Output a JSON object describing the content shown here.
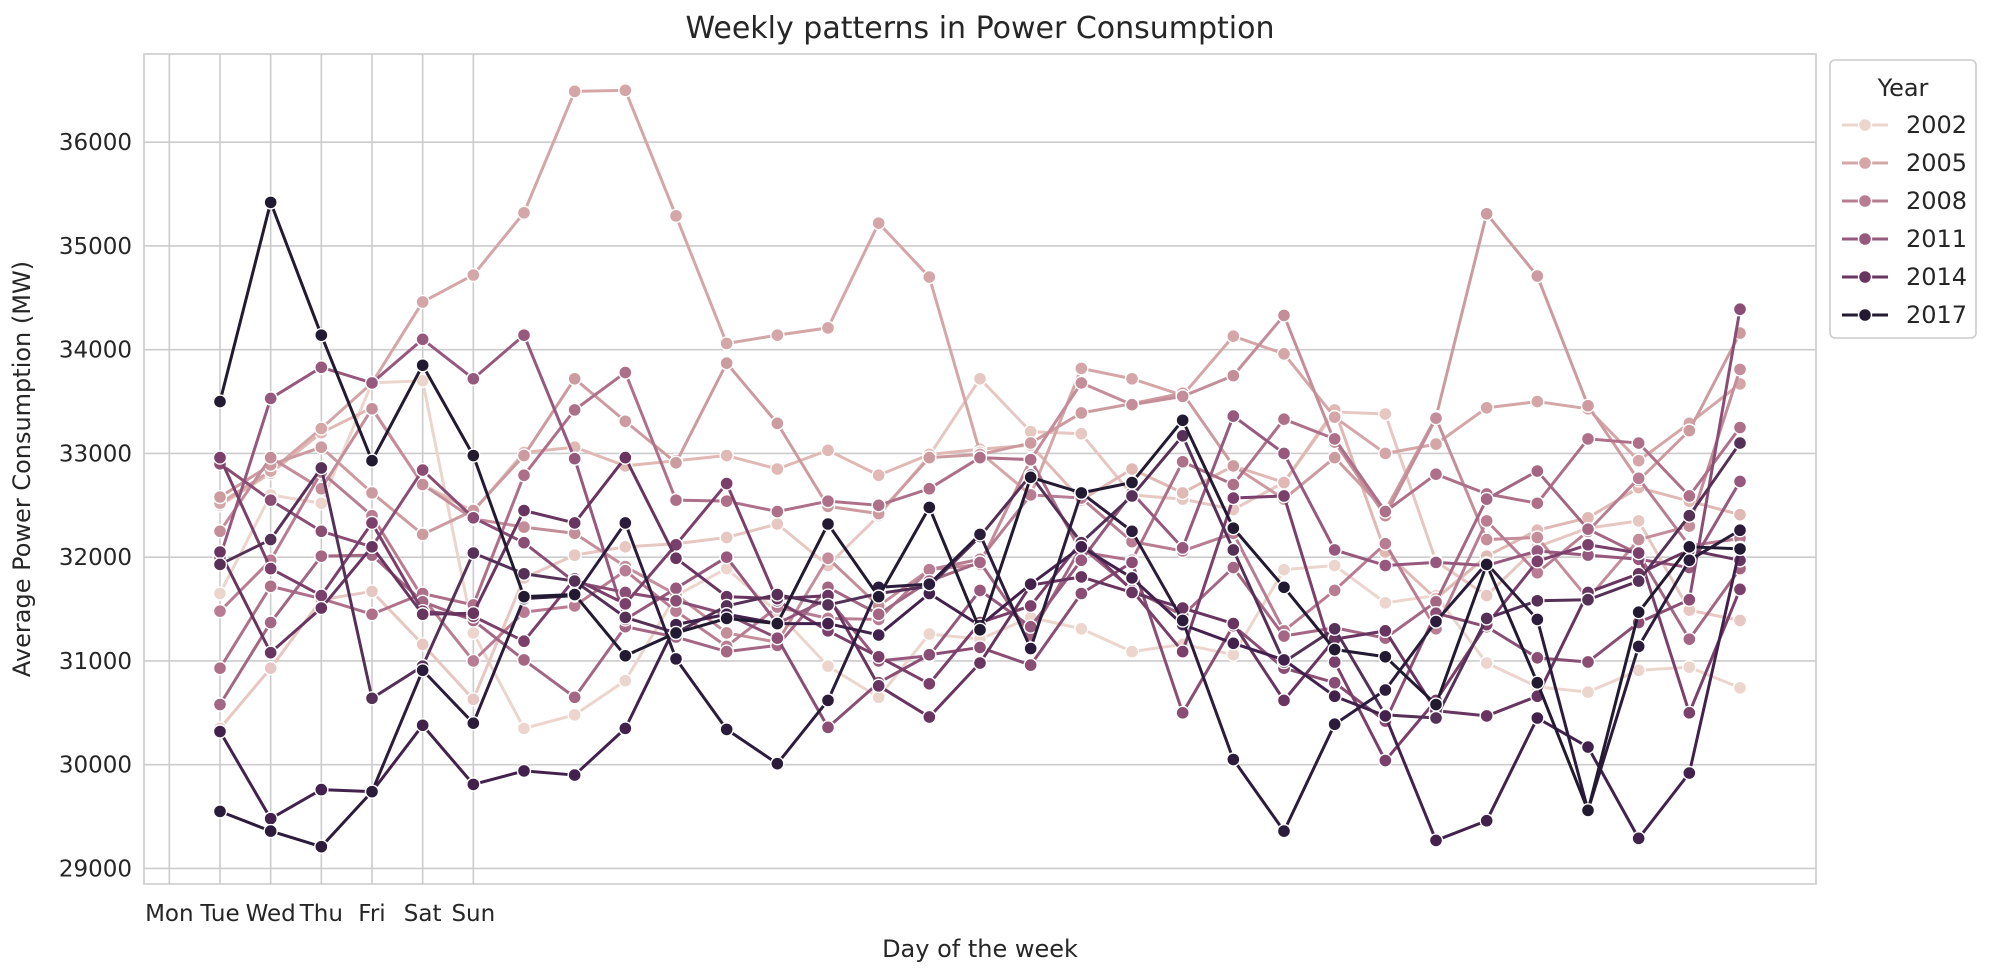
{
  "chart_data": {
    "type": "line",
    "title": "Weekly patterns in Power Consumption",
    "xlabel": "Day of the week",
    "ylabel": "Average Power Consumption (MW)",
    "xlim": [
      -1.5,
      31.5
    ],
    "ylim": [
      28850,
      36850
    ],
    "x_tick_positions": [
      -1,
      0,
      1,
      2,
      3,
      4,
      5
    ],
    "x_tick_labels": [
      "Mon",
      "Tue",
      "Wed",
      "Thu",
      "Fri",
      "Sat",
      "Sun"
    ],
    "y_ticks": [
      29000,
      30000,
      31000,
      32000,
      33000,
      34000,
      35000,
      36000
    ],
    "grid": true,
    "legend": {
      "title": "Year",
      "placement": "upper-right-outside",
      "entries": [
        "2002",
        "2005",
        "2008",
        "2011",
        "2014",
        "2017"
      ]
    },
    "x": [
      0,
      1,
      2,
      3,
      4,
      5,
      6,
      7,
      8,
      9,
      10,
      11,
      12,
      13,
      14,
      15,
      16,
      17,
      18,
      19,
      20,
      21,
      22,
      23,
      24,
      25,
      26,
      27,
      28,
      29,
      30
    ],
    "series": [
      {
        "color": "#ecd5cd",
        "values": [
          31650,
          32600,
          32520,
          33680,
          33700,
          31270,
          30350,
          30480,
          30810,
          31630,
          31890,
          31470,
          30950,
          30650,
          31260,
          31210,
          31420,
          31310,
          31090,
          31160,
          31060,
          31880,
          31920,
          31560,
          31630,
          30980,
          30750,
          30700,
          30910,
          30940,
          30740
        ]
      },
      {
        "color": "#e7c7c1",
        "values": [
          30350,
          30930,
          31590,
          31670,
          31160,
          30630,
          31800,
          32020,
          32100,
          32130,
          32190,
          32320,
          31920,
          32400,
          32980,
          33720,
          33210,
          33190,
          32600,
          32560,
          32460,
          32720,
          33400,
          33380,
          31960,
          31630,
          32100,
          32280,
          32350,
          31490,
          31390
        ]
      },
      {
        "color": "#e0b9b5",
        "values": [
          32500,
          32810,
          33200,
          33440,
          32700,
          32440,
          33010,
          33060,
          32880,
          32930,
          32980,
          32850,
          33030,
          32790,
          32990,
          33040,
          33080,
          32550,
          32850,
          32620,
          32880,
          32720,
          33420,
          32050,
          31600,
          32010,
          32260,
          32380,
          32670,
          32540,
          32410
        ]
      },
      {
        "color": "#d4a6a7",
        "values": [
          32520,
          32830,
          33240,
          33680,
          34460,
          34720,
          35320,
          36490,
          36500,
          35290,
          34060,
          34140,
          34210,
          35220,
          34700,
          33010,
          32600,
          33820,
          33720,
          33560,
          34130,
          33960,
          33350,
          33000,
          33090,
          33440,
          33500,
          33430,
          32930,
          33290,
          33670
        ]
      },
      {
        "color": "#cc9ba0",
        "values": [
          32580,
          32890,
          33060,
          32620,
          32220,
          32450,
          32980,
          33720,
          33310,
          32910,
          33870,
          33290,
          32490,
          32420,
          32960,
          32990,
          33100,
          33390,
          33480,
          33580,
          32880,
          32560,
          32960,
          32450,
          33350,
          35310,
          34710,
          33460,
          32740,
          33220,
          34160
        ]
      },
      {
        "color": "#c38d9a",
        "values": [
          32250,
          32960,
          32660,
          33430,
          32700,
          32370,
          32290,
          32230,
          31910,
          31640,
          31270,
          31180,
          31990,
          31530,
          31880,
          31930,
          32940,
          33680,
          33470,
          33550,
          33750,
          34330,
          33110,
          32400,
          33340,
          32170,
          32190,
          31600,
          32170,
          32300,
          33810
        ]
      },
      {
        "color": "#b87d92",
        "values": [
          31480,
          31970,
          32820,
          32400,
          31610,
          31000,
          31470,
          31530,
          31870,
          31480,
          31140,
          31520,
          31410,
          31400,
          31880,
          31980,
          32600,
          32570,
          32150,
          32060,
          32230,
          31290,
          31680,
          32130,
          31310,
          32350,
          31850,
          32250,
          32760,
          32110,
          32180
        ]
      },
      {
        "color": "#ae7089",
        "values": [
          30930,
          31720,
          31600,
          31450,
          31650,
          31540,
          32790,
          33420,
          33780,
          32550,
          32540,
          32440,
          32540,
          32500,
          32660,
          32960,
          32940,
          32050,
          31970,
          32920,
          32700,
          33330,
          33140,
          32440,
          32800,
          32610,
          32520,
          33140,
          33100,
          32590,
          33250
        ]
      },
      {
        "color": "#a46783",
        "values": [
          30580,
          31370,
          32010,
          32020,
          31570,
          31390,
          31010,
          30650,
          31330,
          31230,
          31090,
          31150,
          31710,
          31450,
          31770,
          31950,
          31250,
          32100,
          31690,
          31440,
          31900,
          31240,
          31320,
          31220,
          31570,
          32560,
          32830,
          32270,
          32030,
          31210,
          31890
        ]
      },
      {
        "color": "#96597d",
        "values": [
          32000,
          33530,
          33830,
          33680,
          34100,
          33720,
          34140,
          32950,
          31400,
          31700,
          32000,
          31360,
          31600,
          31000,
          31050,
          31680,
          31330,
          31970,
          32620,
          32090,
          33360,
          33000,
          32070,
          31920,
          31950,
          31920,
          32060,
          32020,
          31980,
          31900,
          32730
        ]
      },
      {
        "color": "#8a4e74",
        "values": [
          32900,
          32550,
          32250,
          32100,
          32840,
          32380,
          32140,
          31760,
          31660,
          31580,
          31450,
          31220,
          30360,
          30790,
          31060,
          31130,
          30960,
          31650,
          31950,
          30500,
          31340,
          30930,
          30790,
          30420,
          31460,
          31330,
          31030,
          30990,
          31370,
          31590,
          34390
        ]
      },
      {
        "color": "#7a3f6a",
        "values": [
          32960,
          31890,
          31630,
          32330,
          31480,
          31430,
          31190,
          31790,
          31550,
          32120,
          32710,
          31580,
          31290,
          31040,
          30780,
          31370,
          31530,
          32150,
          31680,
          31090,
          32570,
          32590,
          30990,
          30040,
          30620,
          31350,
          31960,
          32120,
          32040,
          30500,
          31690
        ]
      },
      {
        "color": "#683460",
        "values": [
          32050,
          31080,
          31510,
          32100,
          31450,
          31460,
          32450,
          32330,
          32960,
          31990,
          31620,
          31600,
          31630,
          30760,
          30460,
          30980,
          31730,
          31810,
          31660,
          31510,
          31360,
          30620,
          31210,
          31290,
          30520,
          30470,
          30660,
          31660,
          31840,
          32070,
          31970
        ]
      },
      {
        "color": "#553057",
        "values": [
          31930,
          32170,
          32860,
          30640,
          30950,
          32040,
          31840,
          31770,
          31420,
          31270,
          31530,
          31640,
          31540,
          31650,
          31720,
          32200,
          32790,
          32140,
          32590,
          33170,
          32070,
          30990,
          31310,
          30480,
          30450,
          31410,
          31580,
          31590,
          31770,
          32400,
          33100
        ]
      },
      {
        "color": "#42224d",
        "values": [
          30320,
          29480,
          29760,
          29740,
          30380,
          29810,
          29940,
          29900,
          30350,
          31350,
          31450,
          31360,
          31360,
          31250,
          31650,
          31340,
          31740,
          32100,
          31800,
          31350,
          31170,
          31010,
          30660,
          30470,
          29270,
          29460,
          30450,
          30170,
          29290,
          29920,
          32090
        ]
      },
      {
        "color": "#2b1c3c",
        "values": [
          29550,
          29360,
          29210,
          29740,
          30910,
          30400,
          31600,
          31630,
          32330,
          31020,
          30340,
          30010,
          30620,
          31710,
          31740,
          32220,
          31120,
          32620,
          32250,
          31390,
          30050,
          29360,
          30390,
          30720,
          31380,
          31940,
          31400,
          29560,
          31140,
          31970,
          32260
        ]
      },
      {
        "color": "#221a30",
        "values": [
          33500,
          35420,
          34140,
          32930,
          33850,
          32980,
          31620,
          31640,
          31050,
          31270,
          31410,
          31360,
          32320,
          31620,
          32480,
          31300,
          32770,
          32620,
          32720,
          33320,
          32280,
          31710,
          31110,
          31040,
          30580,
          31930,
          30790,
          29560,
          31470,
          32100,
          32080
        ]
      }
    ]
  }
}
